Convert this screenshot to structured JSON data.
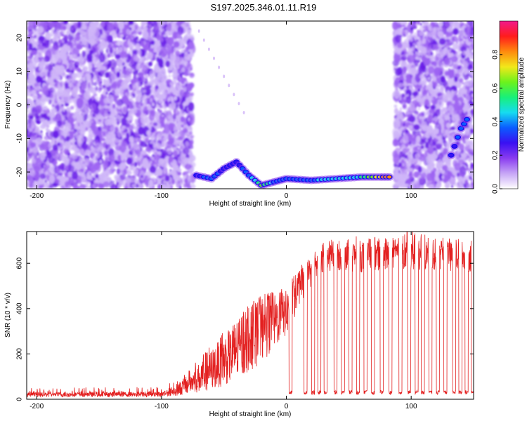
{
  "title": "S197.2025.346.01.11.R19",
  "colors": {
    "snr_line": "#e32020",
    "frame": "#000000",
    "colormap": [
      "#ffffff",
      "#c7a6f6",
      "#8a3cf0",
      "#3a10f2",
      "#0b5cff",
      "#16dcf0",
      "#18f07a",
      "#6cf21c",
      "#f2e81a",
      "#ff8a0e",
      "#ff1c1c",
      "#f21a8c"
    ]
  },
  "chart_data": [
    {
      "type": "heatmap",
      "xlabel": "Height of straight line (km)",
      "ylabel": "Frequency (Hz)",
      "xlim": [
        -208,
        150
      ],
      "ylim": [
        -25,
        25
      ],
      "xticks": [
        -200,
        -100,
        0,
        100
      ],
      "yticks": [
        -20,
        -10,
        0,
        10,
        20
      ],
      "colorbar": {
        "label": "Normalized spectral amplitude",
        "range": [
          0.0,
          1.0
        ],
        "ticks": [
          "0.0",
          "0.2",
          "0.4",
          "0.6",
          "0.8"
        ]
      },
      "noise_regions": [
        {
          "x": [
            -208,
            -75
          ],
          "amplitude": 0.12
        },
        {
          "x": [
            87,
            150
          ],
          "amplitude": 0.12
        }
      ],
      "signal_track": [
        {
          "x": -72,
          "y": -21,
          "v": 0.3
        },
        {
          "x": -60,
          "y": -22,
          "v": 0.35
        },
        {
          "x": -50,
          "y": -19,
          "v": 0.3
        },
        {
          "x": -40,
          "y": -17,
          "v": 0.3
        },
        {
          "x": -30,
          "y": -21,
          "v": 0.35
        },
        {
          "x": -20,
          "y": -24,
          "v": 0.6
        },
        {
          "x": -10,
          "y": -23,
          "v": 0.4
        },
        {
          "x": 0,
          "y": -22,
          "v": 0.35
        },
        {
          "x": 20,
          "y": -22.5,
          "v": 0.4
        },
        {
          "x": 40,
          "y": -22,
          "v": 0.45
        },
        {
          "x": 60,
          "y": -21.5,
          "v": 0.5
        },
        {
          "x": 75,
          "y": -21.5,
          "v": 0.75
        },
        {
          "x": 85,
          "y": -21.5,
          "v": 0.85
        }
      ],
      "late_track": [
        {
          "x": 132,
          "y": -15,
          "v": 0.3
        },
        {
          "x": 140,
          "y": -7,
          "v": 0.35
        },
        {
          "x": 147,
          "y": -3,
          "v": 0.35
        }
      ]
    },
    {
      "type": "line",
      "xlabel": "Height of straight line (km)",
      "ylabel": "SNR (10 * v/v)",
      "xlim": [
        -208,
        150
      ],
      "ylim": [
        0,
        740
      ],
      "xticks": [
        -200,
        -100,
        0,
        100
      ],
      "yticks": [
        0,
        200,
        400,
        600
      ],
      "series": [
        {
          "envelope": [
            {
              "x": -208,
              "low": 10,
              "high": 30
            },
            {
              "x": -100,
              "low": 10,
              "high": 35
            },
            {
              "x": -90,
              "low": 15,
              "high": 60
            },
            {
              "x": -80,
              "low": 20,
              "high": 100
            },
            {
              "x": -70,
              "low": 30,
              "high": 160
            },
            {
              "x": -60,
              "low": 40,
              "high": 220
            },
            {
              "x": -50,
              "low": 60,
              "high": 290
            },
            {
              "x": -40,
              "low": 80,
              "high": 330
            },
            {
              "x": -30,
              "low": 120,
              "high": 400
            },
            {
              "x": -20,
              "low": 160,
              "high": 440
            },
            {
              "x": -10,
              "low": 220,
              "high": 460
            },
            {
              "x": 0,
              "low": 280,
              "high": 480
            },
            {
              "x": 10,
              "low": 400,
              "high": 560
            },
            {
              "x": 20,
              "low": 500,
              "high": 620
            },
            {
              "x": 30,
              "low": 560,
              "high": 680
            },
            {
              "x": 40,
              "low": 570,
              "high": 700
            },
            {
              "x": 60,
              "low": 560,
              "high": 700
            },
            {
              "x": 80,
              "low": 560,
              "high": 700
            },
            {
              "x": 100,
              "low": 570,
              "high": 730
            },
            {
              "x": 120,
              "low": 570,
              "high": 700
            },
            {
              "x": 150,
              "low": 560,
              "high": 690
            }
          ],
          "dropouts_x": [
            2,
            14,
            20,
            25,
            30,
            38,
            44,
            50,
            56,
            62,
            68,
            75,
            82,
            90,
            97,
            103,
            108,
            114,
            120,
            126,
            133,
            138,
            143,
            148
          ],
          "dropout_level": 30
        }
      ]
    }
  ]
}
